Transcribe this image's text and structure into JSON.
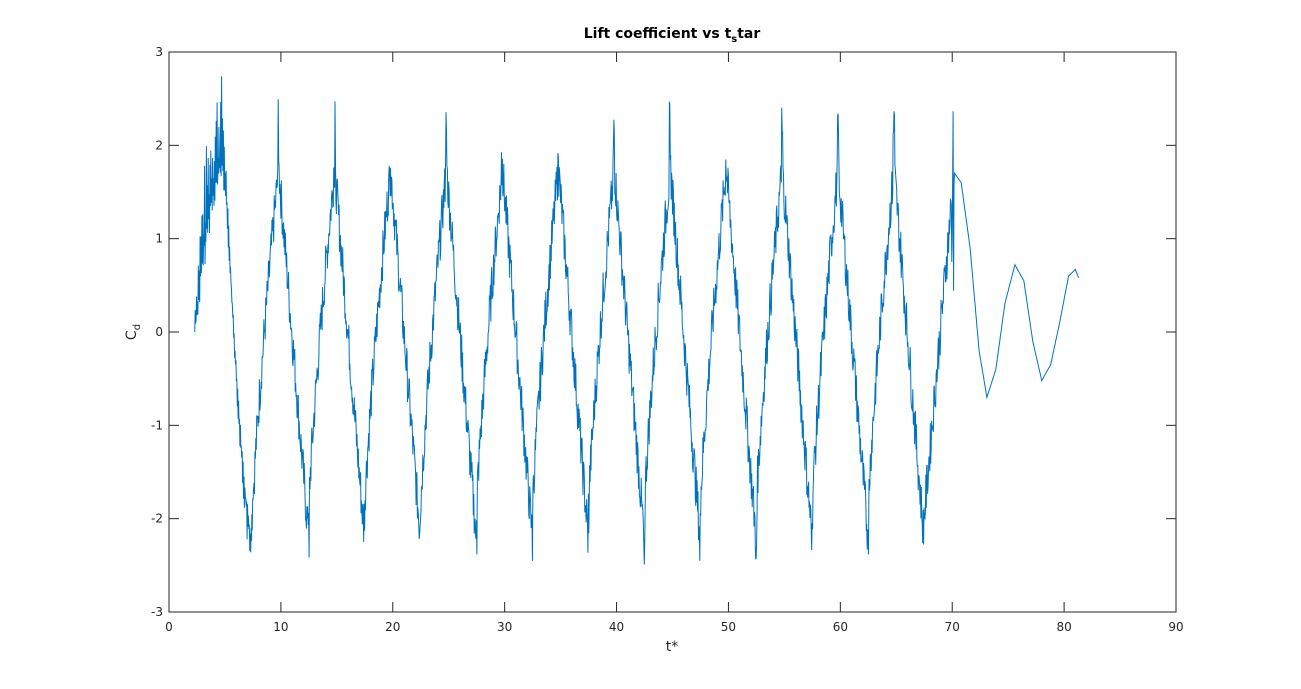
{
  "chart_data": {
    "type": "line",
    "title_main": "Lift coefficient vs t",
    "title_sub": "s",
    "title_tail": "tar",
    "xlabel": "t*",
    "ylabel_main": "C",
    "ylabel_sub": "d",
    "xlim": [
      0,
      90
    ],
    "ylim": [
      -3,
      3
    ],
    "xticks": [
      "0",
      "10",
      "20",
      "30",
      "40",
      "50",
      "60",
      "70",
      "80",
      "90"
    ],
    "yticks": [
      "-3",
      "-2",
      "-1",
      "0",
      "1",
      "2",
      "3"
    ],
    "grid": false,
    "legend": "none",
    "series": [
      {
        "color": "#0072BD",
        "x": [
          2.3,
          2.8,
          3.3,
          3.8,
          4.3,
          4.8,
          5.2,
          5.6,
          6.0,
          6.5,
          7.0,
          7.3,
          7.6,
          8.0,
          8.5,
          9.0,
          9.6,
          9.9,
          10.5,
          11.0,
          11.6,
          12.1,
          12.5
        ],
        "y": [
          0.0,
          0.6,
          1.1,
          1.5,
          1.7,
          1.9,
          1.3,
          0.4,
          -0.4,
          -1.3,
          -2.0,
          -2.2,
          -1.8,
          -1.2,
          -0.6,
          0.1,
          1.0,
          1.75,
          1.3,
          0.6,
          -0.4,
          -1.3,
          -2.0
        ],
        "y_upper": [
          0.3,
          1.3,
          2.0,
          2.4,
          2.7,
          2.8,
          1.5,
          0.5,
          -0.3,
          -1.2,
          -1.8,
          -2.0,
          -1.5,
          -0.9,
          -0.3,
          0.5,
          1.6,
          2.4,
          1.4,
          0.8,
          -0.3,
          -1.2,
          -1.8
        ],
        "y_lower": [
          0.0,
          0.3,
          0.8,
          1.2,
          1.5,
          1.6,
          1.1,
          0.3,
          -0.6,
          -1.6,
          -2.3,
          -2.65,
          -2.4,
          -1.6,
          -0.8,
          -0.1,
          0.8,
          1.5,
          1.1,
          0.5,
          -0.6,
          -1.6,
          -2.5
        ]
      }
    ],
    "periodic_section": {
      "start": 7.4,
      "end": 67.4,
      "period": 5.0,
      "trough": -2.1,
      "peak": 1.75,
      "spike_up": 2.5,
      "spike_down": -2.5
    },
    "tail": {
      "x": [
        70.2,
        70.8,
        71.6,
        72.4,
        73.1,
        73.9,
        74.7,
        75.6,
        76.4,
        77.2,
        78.0,
        78.8,
        79.6,
        80.4,
        81.0,
        81.3
      ],
      "y": [
        1.7,
        1.6,
        0.9,
        -0.2,
        -0.7,
        -0.4,
        0.3,
        0.72,
        0.55,
        -0.1,
        -0.52,
        -0.35,
        0.1,
        0.6,
        0.67,
        0.58
      ]
    }
  }
}
